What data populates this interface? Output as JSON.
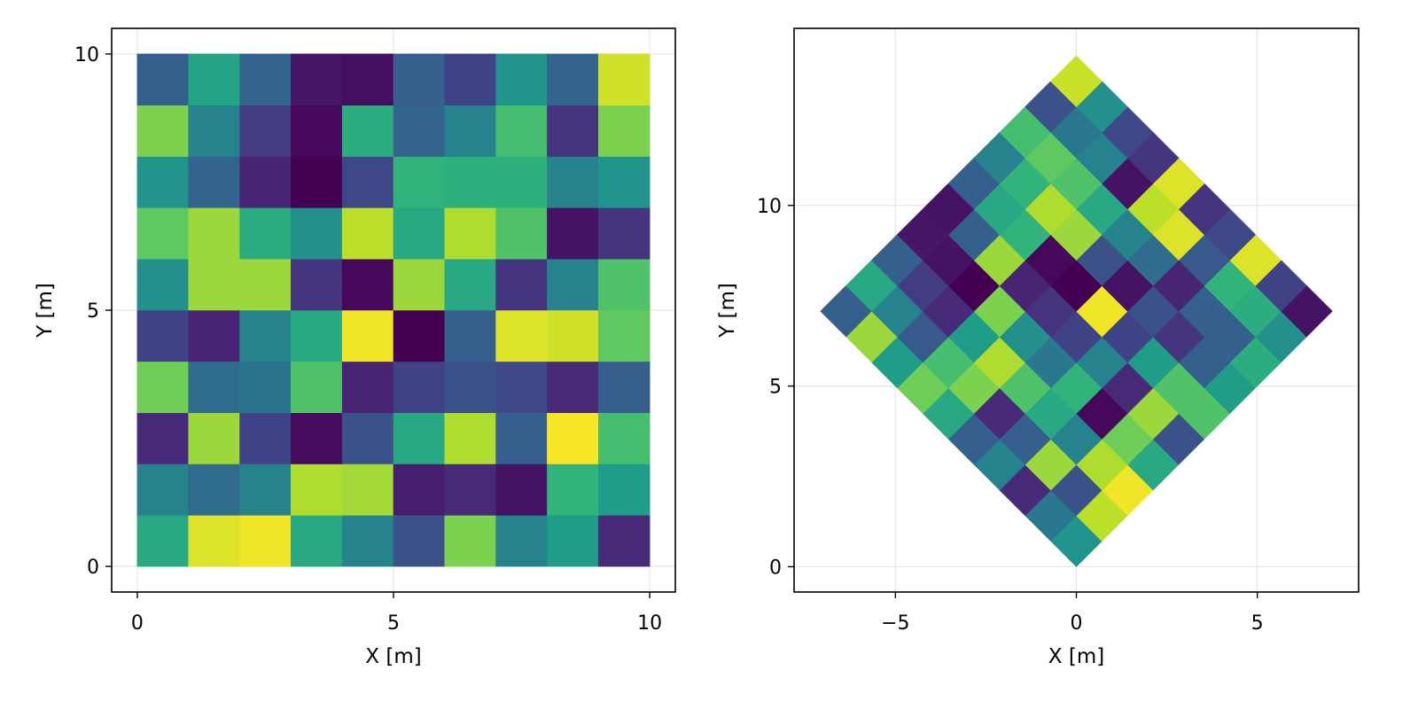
{
  "colormap": [
    "#440154",
    "#482878",
    "#3e4989",
    "#31688e",
    "#26828e",
    "#1f9e89",
    "#35b779",
    "#6ece58",
    "#b5de2b",
    "#fde725"
  ],
  "chart_data": [
    {
      "type": "heatmap",
      "title": "",
      "xlabel": "X [m]",
      "ylabel": "Y [m]",
      "xlim": [
        -0.5,
        10.5
      ],
      "ylim": [
        -0.5,
        10.5
      ],
      "xticks": [
        {
          "v": 0,
          "label": "0"
        },
        {
          "v": 5,
          "label": "5"
        },
        {
          "v": 10,
          "label": "10"
        }
      ],
      "yticks": [
        {
          "v": 0,
          "label": "0"
        },
        {
          "v": 5,
          "label": "5"
        },
        {
          "v": 10,
          "label": "10"
        }
      ],
      "grid": true,
      "rotation_deg": 0,
      "cell_size": 1,
      "value_range": [
        0,
        1
      ],
      "values": [
        [
          0.6,
          0.95,
          0.98,
          0.6,
          0.45,
          0.25,
          0.8,
          0.45,
          0.55,
          0.12
        ],
        [
          0.45,
          0.35,
          0.45,
          0.88,
          0.86,
          0.08,
          0.12,
          0.05,
          0.65,
          0.55
        ],
        [
          0.12,
          0.85,
          0.2,
          0.03,
          0.25,
          0.6,
          0.88,
          0.3,
          0.99,
          0.7
        ],
        [
          0.78,
          0.35,
          0.38,
          0.72,
          0.1,
          0.2,
          0.25,
          0.22,
          0.12,
          0.3
        ],
        [
          0.2,
          0.1,
          0.45,
          0.6,
          0.98,
          0.0,
          0.3,
          0.95,
          0.93,
          0.75
        ],
        [
          0.5,
          0.85,
          0.85,
          0.15,
          0.02,
          0.85,
          0.6,
          0.15,
          0.45,
          0.72
        ],
        [
          0.75,
          0.85,
          0.62,
          0.5,
          0.9,
          0.6,
          0.88,
          0.72,
          0.05,
          0.15
        ],
        [
          0.52,
          0.32,
          0.1,
          0.0,
          0.22,
          0.65,
          0.63,
          0.63,
          0.45,
          0.52
        ],
        [
          0.8,
          0.45,
          0.18,
          0.02,
          0.62,
          0.32,
          0.45,
          0.7,
          0.15,
          0.8
        ],
        [
          0.3,
          0.58,
          0.32,
          0.06,
          0.04,
          0.3,
          0.2,
          0.52,
          0.32,
          0.93
        ]
      ]
    },
    {
      "type": "heatmap",
      "title": "",
      "xlabel": "X [m]",
      "ylabel": "Y [m]",
      "xlim": [
        -7.8,
        7.8
      ],
      "ylim": [
        -0.7,
        14.9
      ],
      "xticks": [
        {
          "v": -5,
          "label": "−5"
        },
        {
          "v": 0,
          "label": "0"
        },
        {
          "v": 5,
          "label": "5"
        }
      ],
      "yticks": [
        {
          "v": 0,
          "label": "0"
        },
        {
          "v": 5,
          "label": "5"
        },
        {
          "v": 10,
          "label": "10"
        }
      ],
      "grid": true,
      "rotation_deg": 45,
      "cell_size": 1,
      "value_range": [
        0,
        1
      ],
      "values": [
        [
          0.52,
          0.9,
          0.98,
          0.6,
          0.25,
          0.72,
          0.55,
          0.62,
          0.5,
          0.05
        ],
        [
          0.4,
          0.25,
          0.88,
          0.78,
          0.85,
          0.72,
          0.3,
          0.3,
          0.62,
          0.2
        ],
        [
          0.12,
          0.85,
          0.45,
          0.02,
          0.12,
          0.55,
          0.15,
          0.3,
          0.65,
          0.95
        ],
        [
          0.45,
          0.3,
          0.6,
          0.65,
          0.45,
          0.2,
          0.25,
          0.1,
          0.28,
          0.22
        ],
        [
          0.3,
          0.12,
          0.72,
          0.4,
          0.2,
          0.98,
          0.05,
          0.35,
          0.95,
          0.15
        ],
        [
          0.6,
          0.8,
          0.88,
          0.5,
          0.15,
          0.0,
          0.25,
          0.45,
          0.9,
          0.95
        ],
        [
          0.78,
          0.7,
          0.55,
          0.8,
          0.1,
          0.02,
          0.85,
          0.6,
          0.05,
          0.15
        ],
        [
          0.55,
          0.28,
          0.12,
          0.0,
          0.85,
          0.65,
          0.88,
          0.72,
          0.45,
          0.22
        ],
        [
          0.85,
          0.45,
          0.18,
          0.05,
          0.3,
          0.6,
          0.65,
          0.75,
          0.4,
          0.5
        ],
        [
          0.3,
          0.6,
          0.3,
          0.06,
          0.05,
          0.3,
          0.45,
          0.7,
          0.25,
          0.92
        ]
      ]
    }
  ]
}
